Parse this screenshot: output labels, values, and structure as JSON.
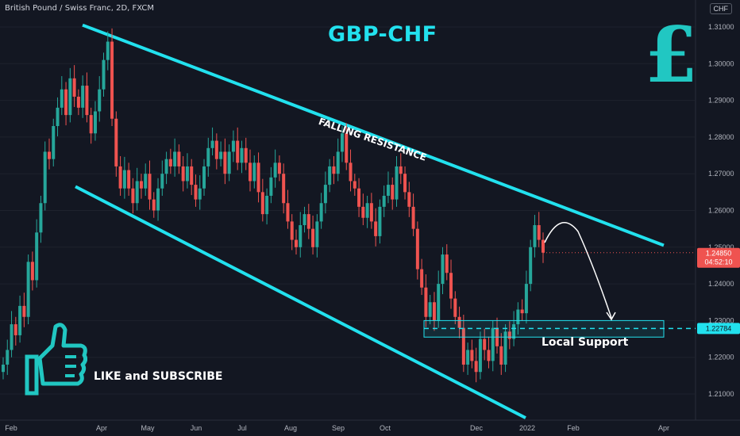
{
  "header": {
    "symbol_info": "British Pound / Swiss Franc, 2D, FXCM",
    "currency_button": "CHF"
  },
  "annotations": {
    "title": "GBP-CHF",
    "pound_symbol": "£",
    "falling_resistance": "FALLING RESISTANCE",
    "local_support": "Local Support",
    "like_subscribe": "LIKE and SUBSCRIBE"
  },
  "price_labels": {
    "last_price": "1.24850",
    "countdown": "04:52:10",
    "support_level": "1.22784"
  },
  "colors": {
    "background": "#131722",
    "up": "#26a69a",
    "down": "#ef5350",
    "accent": "#22e1ee",
    "text": "#d1d4dc",
    "grid": "#1e222d"
  },
  "icons": [
    "pound-sign-icon",
    "thumbs-up-icon"
  ],
  "chart_data": {
    "type": "candlestick",
    "ylim": [
      1.2,
      1.312
    ],
    "y_ticks": [
      "1.21000",
      "1.22000",
      "1.23000",
      "1.24000",
      "1.25000",
      "1.26000",
      "1.27000",
      "1.28000",
      "1.29000",
      "1.30000",
      "1.31000"
    ],
    "x_ticks": [
      "Feb",
      "Apr",
      "May",
      "Jun",
      "Jul",
      "Aug",
      "Sep",
      "Oct",
      "Dec",
      "2022",
      "Feb",
      "Apr"
    ],
    "closes": [
      1.218,
      1.222,
      1.229,
      1.226,
      1.234,
      1.231,
      1.246,
      1.241,
      1.254,
      1.262,
      1.276,
      1.274,
      1.283,
      1.288,
      1.293,
      1.286,
      1.296,
      1.291,
      1.288,
      1.294,
      1.286,
      1.281,
      1.287,
      1.293,
      1.301,
      1.306,
      1.285,
      1.272,
      1.266,
      1.271,
      1.266,
      1.262,
      1.268,
      1.266,
      1.27,
      1.263,
      1.26,
      1.266,
      1.27,
      1.274,
      1.272,
      1.276,
      1.272,
      1.268,
      1.272,
      1.267,
      1.263,
      1.266,
      1.272,
      1.277,
      1.279,
      1.274,
      1.276,
      1.27,
      1.276,
      1.279,
      1.273,
      1.277,
      1.273,
      1.268,
      1.273,
      1.265,
      1.259,
      1.264,
      1.269,
      1.273,
      1.27,
      1.262,
      1.257,
      1.252,
      1.25,
      1.256,
      1.259,
      1.255,
      1.25,
      1.257,
      1.262,
      1.267,
      1.272,
      1.27,
      1.276,
      1.281,
      1.273,
      1.268,
      1.266,
      1.261,
      1.258,
      1.262,
      1.257,
      1.253,
      1.261,
      1.264,
      1.267,
      1.263,
      1.272,
      1.27,
      1.265,
      1.261,
      1.255,
      1.244,
      1.239,
      1.231,
      1.235,
      1.23,
      1.24,
      1.248,
      1.243,
      1.236,
      1.231,
      1.228,
      1.218,
      1.222,
      1.219,
      1.216,
      1.225,
      1.222,
      1.219,
      1.228,
      1.223,
      1.218,
      1.227,
      1.225,
      1.229,
      1.233,
      1.232,
      1.24,
      1.25,
      1.256,
      1.252,
      1.2485
    ],
    "support_zone": [
      1.2255,
      1.23
    ],
    "support_level": 1.22784,
    "resistance_line": {
      "from": [
        "Feb",
        1.3105
      ],
      "to": [
        "Apr",
        1.2505
      ]
    },
    "lower_channel_line": {
      "from": [
        "Feb",
        1.2665
      ],
      "to": [
        "Dec",
        1.2035
      ]
    }
  }
}
